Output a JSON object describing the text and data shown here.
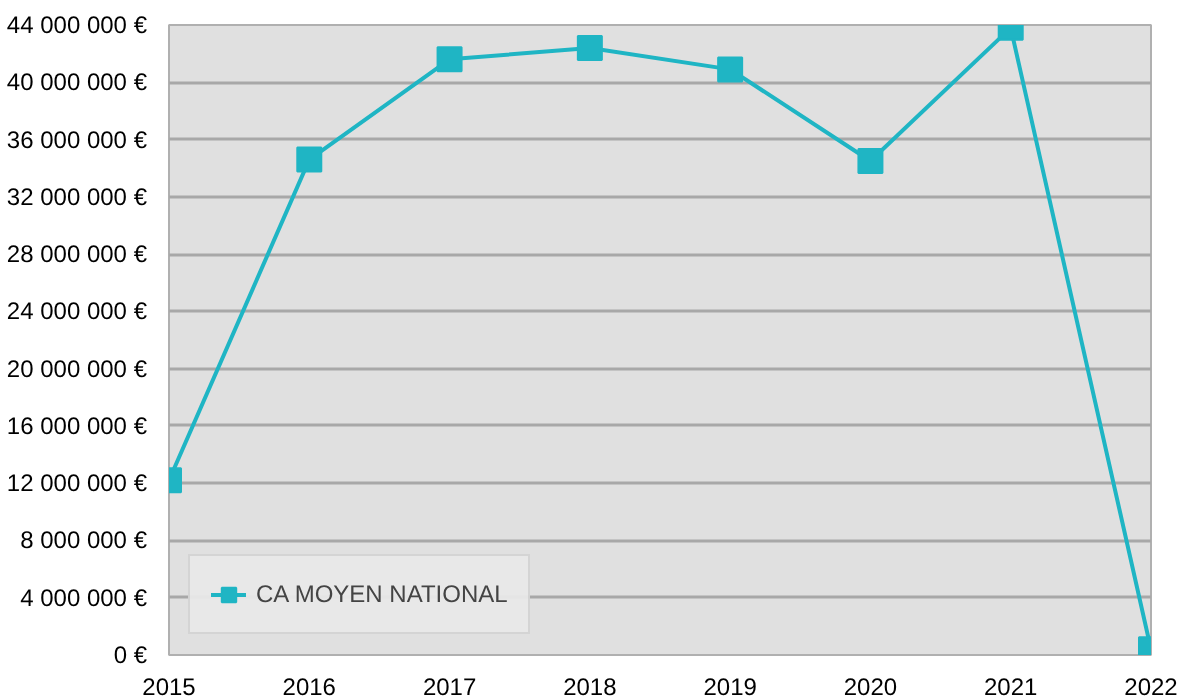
{
  "chart_data": {
    "type": "line",
    "categories": [
      "2015",
      "2016",
      "2017",
      "2018",
      "2019",
      "2020",
      "2021",
      "2022"
    ],
    "series": [
      {
        "name": "CA MOYEN NATIONAL",
        "color": "#1fb5c4",
        "values": [
          12200000,
          34600000,
          41600000,
          42400000,
          40900000,
          34500000,
          43800000,
          400000
        ]
      }
    ],
    "ylim": [
      0,
      44000000
    ],
    "yticks": [
      {
        "value": 0,
        "label": "0 €"
      },
      {
        "value": 4000000,
        "label": "4 000 000 €"
      },
      {
        "value": 8000000,
        "label": "8 000 000 €"
      },
      {
        "value": 12000000,
        "label": "12 000 000 €"
      },
      {
        "value": 16000000,
        "label": "16 000 000 €"
      },
      {
        "value": 20000000,
        "label": "20 000 000 €"
      },
      {
        "value": 24000000,
        "label": "24 000 000 €"
      },
      {
        "value": 28000000,
        "label": "28 000 000 €"
      },
      {
        "value": 32000000,
        "label": "32 000 000 €"
      },
      {
        "value": 36000000,
        "label": "36 000 000 €"
      },
      {
        "value": 40000000,
        "label": "40 000 000 €"
      },
      {
        "value": 44000000,
        "label": "44 000 000 €"
      }
    ],
    "grid": "y",
    "legend": "bottom left",
    "marker": "square",
    "line_style": "solid"
  }
}
